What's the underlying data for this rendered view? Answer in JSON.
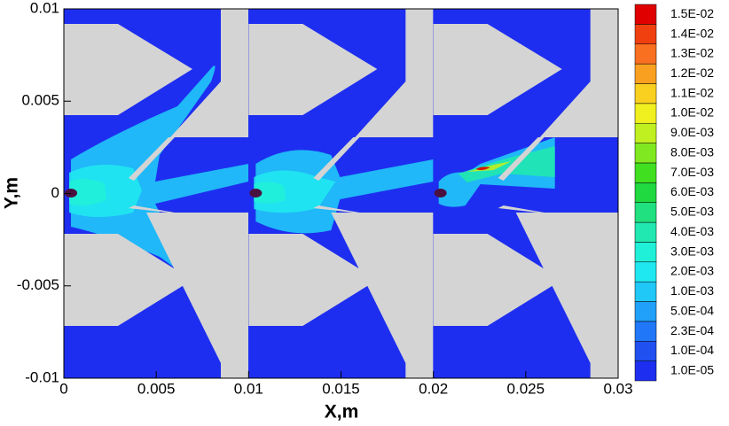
{
  "chart_data": {
    "type": "contour",
    "xlabel": "X,m",
    "ylabel": "Y,m",
    "xlim": [
      0,
      0.03
    ],
    "ylim": [
      -0.01,
      0.01
    ],
    "xticks": [
      0,
      0.005,
      0.01,
      0.015,
      0.02,
      0.025,
      0.03
    ],
    "yticks": [
      -0.01,
      -0.005,
      0,
      0.005,
      0.01
    ],
    "colorbar": {
      "ticks": [
        {
          "value": 1e-05,
          "label": "1.0E-05"
        },
        {
          "value": 0.0001,
          "label": "1.0E-04"
        },
        {
          "value": 0.00023,
          "label": "2.3E-04"
        },
        {
          "value": 0.0005,
          "label": "5.0E-04"
        },
        {
          "value": 0.001,
          "label": "1.0E-03"
        },
        {
          "value": 0.002,
          "label": "2.0E-03"
        },
        {
          "value": 0.003,
          "label": "3.0E-03"
        },
        {
          "value": 0.004,
          "label": "4.0E-03"
        },
        {
          "value": 0.005,
          "label": "5.0E-03"
        },
        {
          "value": 0.006,
          "label": "6.0E-03"
        },
        {
          "value": 0.007,
          "label": "7.0E-03"
        },
        {
          "value": 0.008,
          "label": "8.0E-03"
        },
        {
          "value": 0.009,
          "label": "9.0E-03"
        },
        {
          "value": 0.01,
          "label": "1.0E-02"
        },
        {
          "value": 0.011,
          "label": "1.1E-02"
        },
        {
          "value": 0.012,
          "label": "1.2E-02"
        },
        {
          "value": 0.013,
          "label": "1.3E-02"
        },
        {
          "value": 0.014,
          "label": "1.4E-02"
        },
        {
          "value": 0.015,
          "label": "1.5E-02"
        }
      ],
      "colors": [
        "#1e2ef0",
        "#2050f0",
        "#2078f8",
        "#20a0f8",
        "#20c8f8",
        "#20e8f0",
        "#20f0d8",
        "#20e8b0",
        "#20e080",
        "#20d840",
        "#40e020",
        "#80e820",
        "#c0f020",
        "#f0f020",
        "#fad020",
        "#faa020",
        "#f87020",
        "#f04010",
        "#e00000"
      ]
    }
  }
}
